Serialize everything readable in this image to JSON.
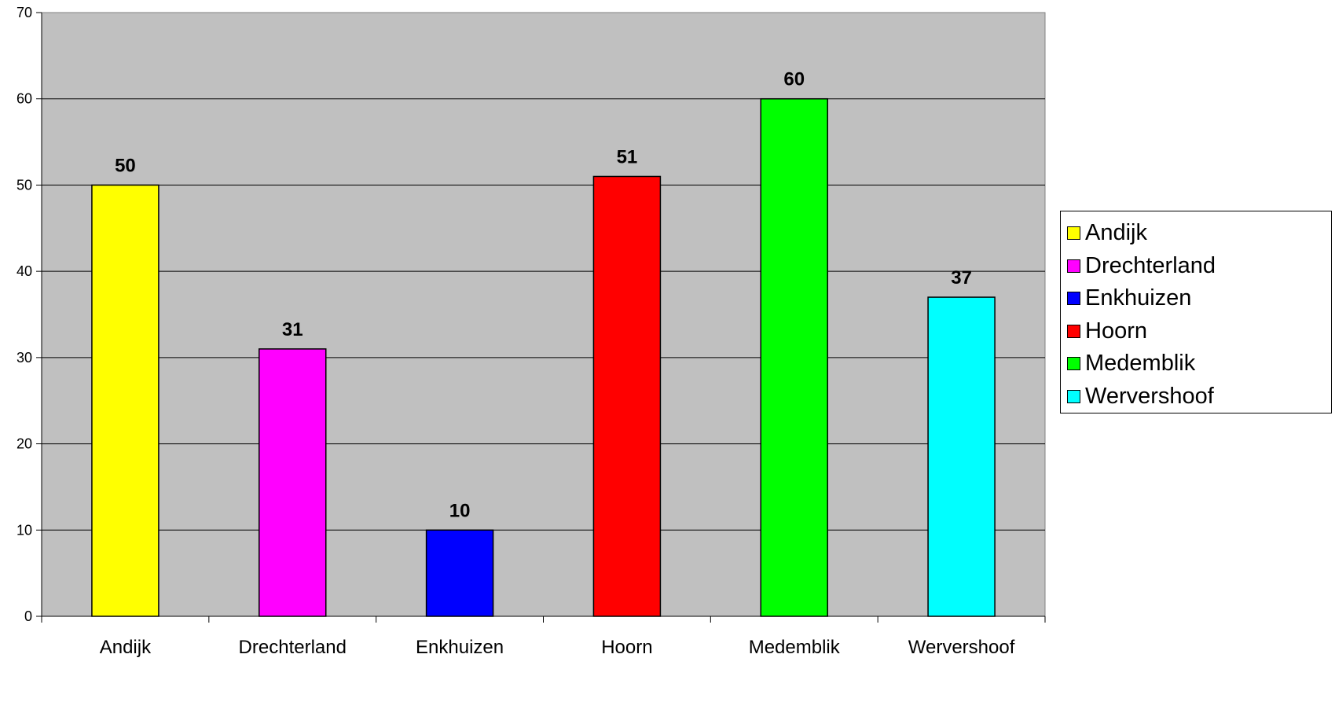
{
  "chart_data": {
    "type": "bar",
    "title": "",
    "xlabel": "",
    "ylabel": "",
    "categories": [
      "Andijk",
      "Drechterland",
      "Enkhuizen",
      "Hoorn",
      "Medemblik",
      "Wervershoof"
    ],
    "values": [
      50,
      31,
      10,
      51,
      60,
      37
    ],
    "colors": [
      "#ffff00",
      "#ff00ff",
      "#0000ff",
      "#ff0000",
      "#00ff00",
      "#00ffff"
    ],
    "ylim": [
      0,
      70
    ],
    "yticks": [
      "0",
      "10",
      "20",
      "30",
      "40",
      "50",
      "60",
      "70"
    ],
    "data_labels": [
      "50",
      "31",
      "10",
      "51",
      "60",
      "37"
    ],
    "grid": true,
    "plot_background": "#c0c0c0",
    "legend_position": "right",
    "legend": [
      "Andijk",
      "Drechterland",
      "Enkhuizen",
      "Hoorn",
      "Medemblik",
      "Wervershoof"
    ]
  }
}
